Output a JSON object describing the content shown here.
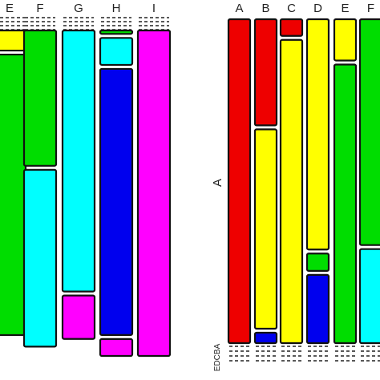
{
  "chart_data": [
    {
      "type": "mosaic",
      "title": "",
      "xlabel": "",
      "ylabel": "",
      "columns": [
        {
          "label": "E",
          "segments": [
            {
              "category": "E",
              "share": 0.0625,
              "color": "#ffff00"
            },
            {
              "category": "F",
              "share": 0.8725,
              "color": "#00dd00"
            }
          ]
        },
        {
          "label": "F",
          "segments": [
            {
              "category": "F",
              "share": 0.421,
              "color": "#00dd00"
            },
            {
              "category": "G",
              "share": 0.55,
              "color": "#00ffff"
            }
          ]
        },
        {
          "label": "G",
          "segments": [
            {
              "category": "G",
              "share": 0.812,
              "color": "#00ffff"
            },
            {
              "category": "H",
              "share": 0.135,
              "color": "#ff00ff"
            }
          ]
        },
        {
          "label": "H",
          "segments": [
            {
              "category": "F",
              "share": 0.011,
              "color": "#00dd00"
            },
            {
              "category": "G",
              "share": 0.086,
              "color": "#00ffff"
            },
            {
              "category": "H",
              "share": 0.849,
              "color": "#0000ee"
            },
            {
              "category": "I",
              "share": 0.054,
              "color": "#ff00ff"
            }
          ]
        },
        {
          "label": "I",
          "segments": [
            {
              "category": "I",
              "share": 1.0,
              "color": "#ff00ff"
            }
          ]
        }
      ]
    },
    {
      "type": "mosaic",
      "title": "",
      "xlabel": "",
      "ylabel": "A",
      "y_tick_labels": [
        "A",
        "B",
        "C",
        "D",
        "E"
      ],
      "columns": [
        {
          "label": "A",
          "segments": [
            {
              "category": "A",
              "share": 1.0,
              "color": "#ee0000"
            }
          ]
        },
        {
          "label": "B",
          "segments": [
            {
              "category": "A",
              "share": 0.336,
              "color": "#ee0000"
            },
            {
              "category": "B",
              "share": 0.631,
              "color": "#ffff00"
            },
            {
              "category": "D",
              "share": 0.033,
              "color": "#0000ee"
            }
          ]
        },
        {
          "label": "C",
          "segments": [
            {
              "category": "A",
              "share": 0.052,
              "color": "#ee0000"
            },
            {
              "category": "B",
              "share": 0.948,
              "color": "#ffff00"
            }
          ]
        },
        {
          "label": "D",
          "segments": [
            {
              "category": "B",
              "share": 0.729,
              "color": "#ffff00"
            },
            {
              "category": "C",
              "share": 0.055,
              "color": "#00dd00"
            },
            {
              "category": "D",
              "share": 0.216,
              "color": "#0000ee"
            }
          ]
        },
        {
          "label": "E",
          "segments": [
            {
              "category": "B",
              "share": 0.129,
              "color": "#ffff00"
            },
            {
              "category": "C",
              "share": 0.871,
              "color": "#00dd00"
            }
          ]
        },
        {
          "label": "F",
          "segments": [
            {
              "category": "C",
              "share": 0.706,
              "color": "#00dd00"
            },
            {
              "category": "D",
              "share": 0.294,
              "color": "#00ffff"
            }
          ]
        }
      ]
    }
  ]
}
